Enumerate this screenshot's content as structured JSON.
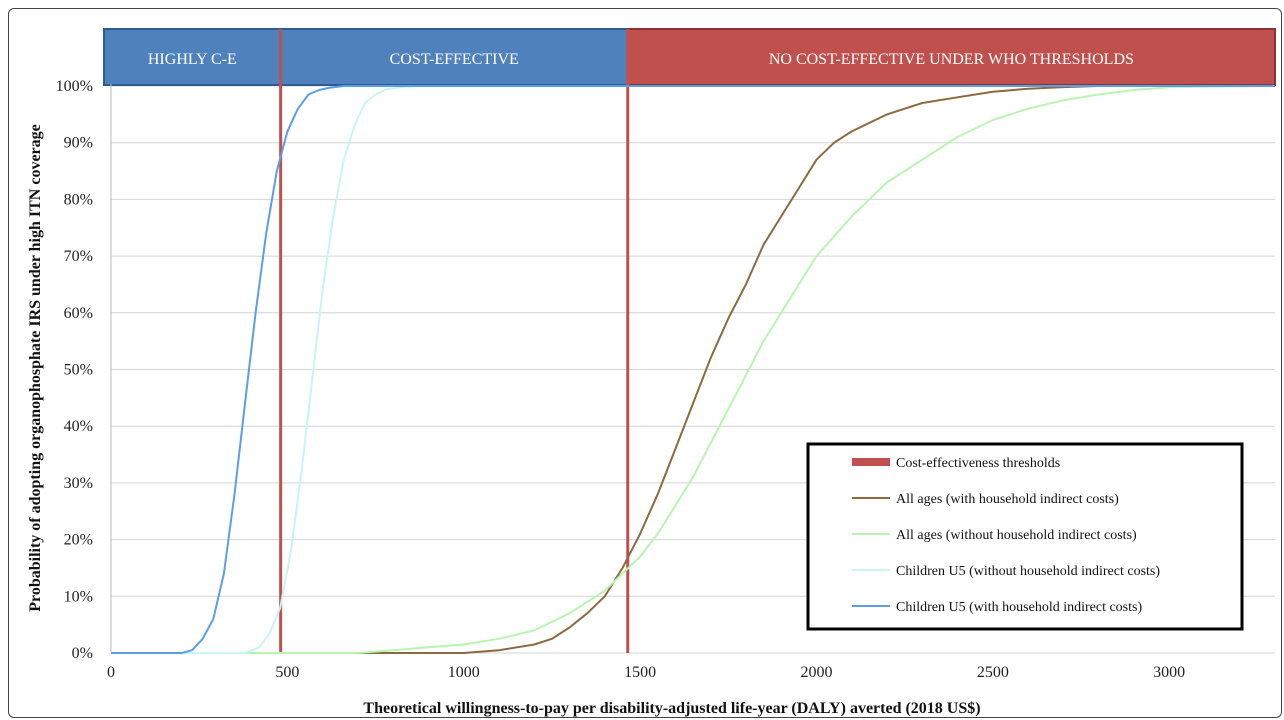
{
  "chart_data": {
    "type": "line",
    "title": "",
    "xlabel": "Theoretical willingness-to-pay per disability-adjusted life-year (DALY) averted (2018 US$)",
    "ylabel": "Probability of adopting organophosphate IRS under high ITN coverage",
    "xlim": [
      0,
      3300
    ],
    "ylim": [
      0,
      100
    ],
    "x_ticks": [
      0,
      500,
      1000,
      1500,
      2000,
      2500,
      3000
    ],
    "y_ticks": [
      0,
      10,
      20,
      30,
      40,
      50,
      60,
      70,
      80,
      90,
      100
    ],
    "y_tick_suffix": "%",
    "grid": "horizontal",
    "legend_position": "bottom-right",
    "bands": [
      {
        "label": "HIGHLY C-E",
        "from": 0,
        "to": 481,
        "color": "#4f81bd"
      },
      {
        "label": "COST-EFFECTIVE",
        "from": 481,
        "to": 1465,
        "color": "#4f81bd"
      },
      {
        "label": "NO COST-EFFECTIVE UNDER WHO THRESHOLDS",
        "from": 1465,
        "to": 3300,
        "color": "#c0504d"
      }
    ],
    "thresholds": {
      "name": "Cost-effectiveness thresholds",
      "values": [
        481,
        1465
      ],
      "color": "#c0504d"
    },
    "series": [
      {
        "name": "All ages (with household indirect costs)",
        "color": "#8b6a3e",
        "x": [
          0,
          1000,
          1100,
          1200,
          1250,
          1300,
          1350,
          1400,
          1450,
          1500,
          1550,
          1600,
          1650,
          1700,
          1750,
          1800,
          1850,
          1900,
          1950,
          2000,
          2050,
          2100,
          2200,
          2300,
          2400,
          2500,
          2600,
          2700,
          2800,
          3300
        ],
        "values": [
          0,
          0,
          0.5,
          1.5,
          2.5,
          4.5,
          7,
          10,
          15,
          21,
          28,
          36,
          44,
          52,
          59,
          65,
          72,
          77,
          82,
          87,
          90,
          92,
          95,
          97,
          98,
          99,
          99.5,
          99.8,
          100,
          100
        ]
      },
      {
        "name": "All ages (without household indirect costs)",
        "color": "#b8f5b0",
        "x": [
          0,
          700,
          800,
          900,
          1000,
          1100,
          1200,
          1300,
          1400,
          1500,
          1550,
          1600,
          1650,
          1700,
          1750,
          1800,
          1850,
          1900,
          1950,
          2000,
          2100,
          2200,
          2300,
          2400,
          2500,
          2600,
          2700,
          2800,
          2900,
          3000,
          3300
        ],
        "values": [
          0,
          0,
          0.5,
          1,
          1.5,
          2.5,
          4,
          7,
          11,
          17,
          21,
          26,
          31,
          37,
          43,
          49,
          55,
          60,
          65,
          70,
          77,
          83,
          87,
          91,
          94,
          96,
          97.5,
          98.5,
          99.3,
          99.8,
          100
        ]
      },
      {
        "name": "Children U5 (without household indirect costs)",
        "color": "#c8f4f4",
        "x": [
          0,
          380,
          420,
          450,
          480,
          510,
          540,
          570,
          600,
          630,
          660,
          690,
          720,
          750,
          780,
          820,
          870,
          3300
        ],
        "values": [
          0,
          0,
          1,
          3.5,
          8,
          18,
          32,
          48,
          64,
          77,
          87,
          93,
          97,
          98.5,
          99.4,
          99.8,
          100,
          100
        ]
      },
      {
        "name": "Children U5 (with household indirect costs)",
        "color": "#5b9ee8",
        "x": [
          0,
          200,
          230,
          260,
          290,
          320,
          350,
          380,
          410,
          440,
          470,
          500,
          530,
          560,
          590,
          620,
          660,
          700,
          750,
          3300
        ],
        "values": [
          0,
          0,
          0.5,
          2.5,
          6,
          14,
          28,
          44,
          60,
          74,
          85,
          92,
          96,
          98.5,
          99.3,
          99.7,
          100,
          100,
          100,
          100
        ]
      }
    ]
  }
}
